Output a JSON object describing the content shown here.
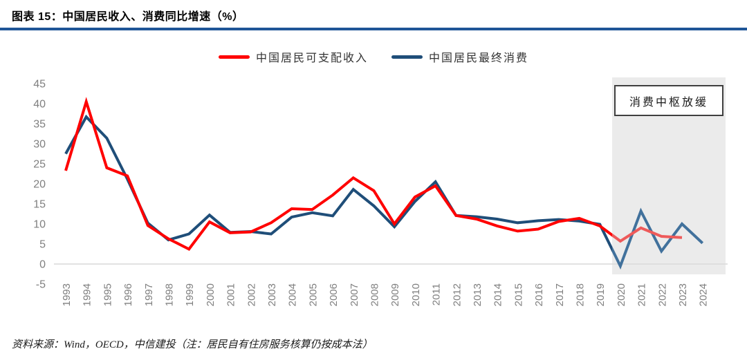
{
  "header": {
    "title": "图表 15：中国居民收入、消费同比增速（%）"
  },
  "legend": [
    {
      "label": "中国居民可支配收入"
    },
    {
      "label": "中国居民最终消费"
    }
  ],
  "footer": {
    "source": "资料来源：Wind，OECD，中信建投（注：居民自有住房服务核算仍按成本法）"
  },
  "colors": {
    "title_rule": "#1F5597",
    "axis_labels": "#7F7F7F",
    "zero_line": "#D9D9D9",
    "highlight_bg": "#EBEBEB",
    "annotation_border": "#3F3F3F",
    "income_red": "#FF0000",
    "income_red_light": "#EE5A5A",
    "consumption_blue": "#1F4E79",
    "consumption_blue_light": "#41719C"
  },
  "chart_data": {
    "type": "line",
    "title": "中国居民收入、消费同比增速（%）",
    "xlabel": "",
    "ylabel": "",
    "ylim": [
      -5,
      45
    ],
    "yticks": [
      45,
      40,
      35,
      30,
      25,
      20,
      15,
      10,
      5,
      0,
      -5
    ],
    "grid": false,
    "legend_position": "top",
    "x": [
      1993,
      1994,
      1995,
      1996,
      1997,
      1998,
      1999,
      2000,
      2001,
      2002,
      2003,
      2004,
      2005,
      2006,
      2007,
      2008,
      2009,
      2010,
      2011,
      2012,
      2013,
      2014,
      2015,
      2016,
      2017,
      2018,
      2019,
      2020,
      2021,
      2022,
      2023,
      2024
    ],
    "series": [
      {
        "name": "中国居民可支配收入",
        "color": "#FF0000",
        "color_in_highlight": "#EE5A5A",
        "values": [
          23.3,
          40.5,
          24.0,
          22.0,
          9.6,
          6.3,
          3.7,
          10.5,
          7.8,
          8.0,
          10.3,
          13.8,
          13.6,
          17.2,
          21.5,
          18.3,
          10.0,
          16.7,
          19.5,
          12.1,
          11.2,
          9.5,
          8.2,
          8.7,
          10.6,
          11.4,
          9.5,
          5.7,
          9.0,
          6.9,
          6.6,
          null
        ]
      },
      {
        "name": "中国居民最终消费",
        "color": "#1F4E79",
        "color_in_highlight": "#41719C",
        "values": [
          27.5,
          36.7,
          31.4,
          21.2,
          10.2,
          6.0,
          7.5,
          12.2,
          7.9,
          8.1,
          7.5,
          11.7,
          12.8,
          12.0,
          18.6,
          14.5,
          9.3,
          15.6,
          20.5,
          12.1,
          11.8,
          11.2,
          10.3,
          10.8,
          11.1,
          10.7,
          9.9,
          -0.5,
          13.2,
          3.2,
          10.0,
          5.2
        ]
      }
    ],
    "highlight_region": {
      "label": "消费中枢放缓",
      "from_year": 2020,
      "to_year": 2024
    }
  }
}
